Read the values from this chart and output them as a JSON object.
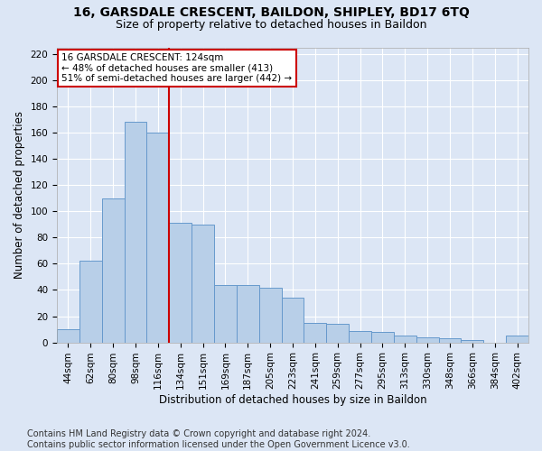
{
  "title_line1": "16, GARSDALE CRESCENT, BAILDON, SHIPLEY, BD17 6TQ",
  "title_line2": "Size of property relative to detached houses in Baildon",
  "xlabel": "Distribution of detached houses by size in Baildon",
  "ylabel": "Number of detached properties",
  "footer_line1": "Contains HM Land Registry data © Crown copyright and database right 2024.",
  "footer_line2": "Contains public sector information licensed under the Open Government Licence v3.0.",
  "bin_labels": [
    "44sqm",
    "62sqm",
    "80sqm",
    "98sqm",
    "116sqm",
    "134sqm",
    "151sqm",
    "169sqm",
    "187sqm",
    "205sqm",
    "223sqm",
    "241sqm",
    "259sqm",
    "277sqm",
    "295sqm",
    "313sqm",
    "330sqm",
    "348sqm",
    "366sqm",
    "384sqm",
    "402sqm"
  ],
  "bar_values": [
    10,
    62,
    110,
    168,
    160,
    91,
    90,
    44,
    44,
    42,
    34,
    15,
    14,
    9,
    8,
    5,
    4,
    3,
    2,
    0,
    5
  ],
  "bar_color": "#b8cfe8",
  "bar_edge_color": "#6699cc",
  "vline_x_bar_index": 4,
  "vline_color": "#cc0000",
  "annotation_text": "16 GARSDALE CRESCENT: 124sqm\n← 48% of detached houses are smaller (413)\n51% of semi-detached houses are larger (442) →",
  "annotation_box_color": "white",
  "annotation_box_edge": "#cc0000",
  "ylim": [
    0,
    225
  ],
  "yticks": [
    0,
    20,
    40,
    60,
    80,
    100,
    120,
    140,
    160,
    180,
    200,
    220
  ],
  "bg_color": "#dce6f5",
  "plot_bg_color": "#dce6f5",
  "grid_color": "white",
  "title_fontsize": 10,
  "subtitle_fontsize": 9,
  "axis_label_fontsize": 8.5,
  "tick_fontsize": 7.5,
  "annotation_fontsize": 7.5,
  "footer_fontsize": 7
}
